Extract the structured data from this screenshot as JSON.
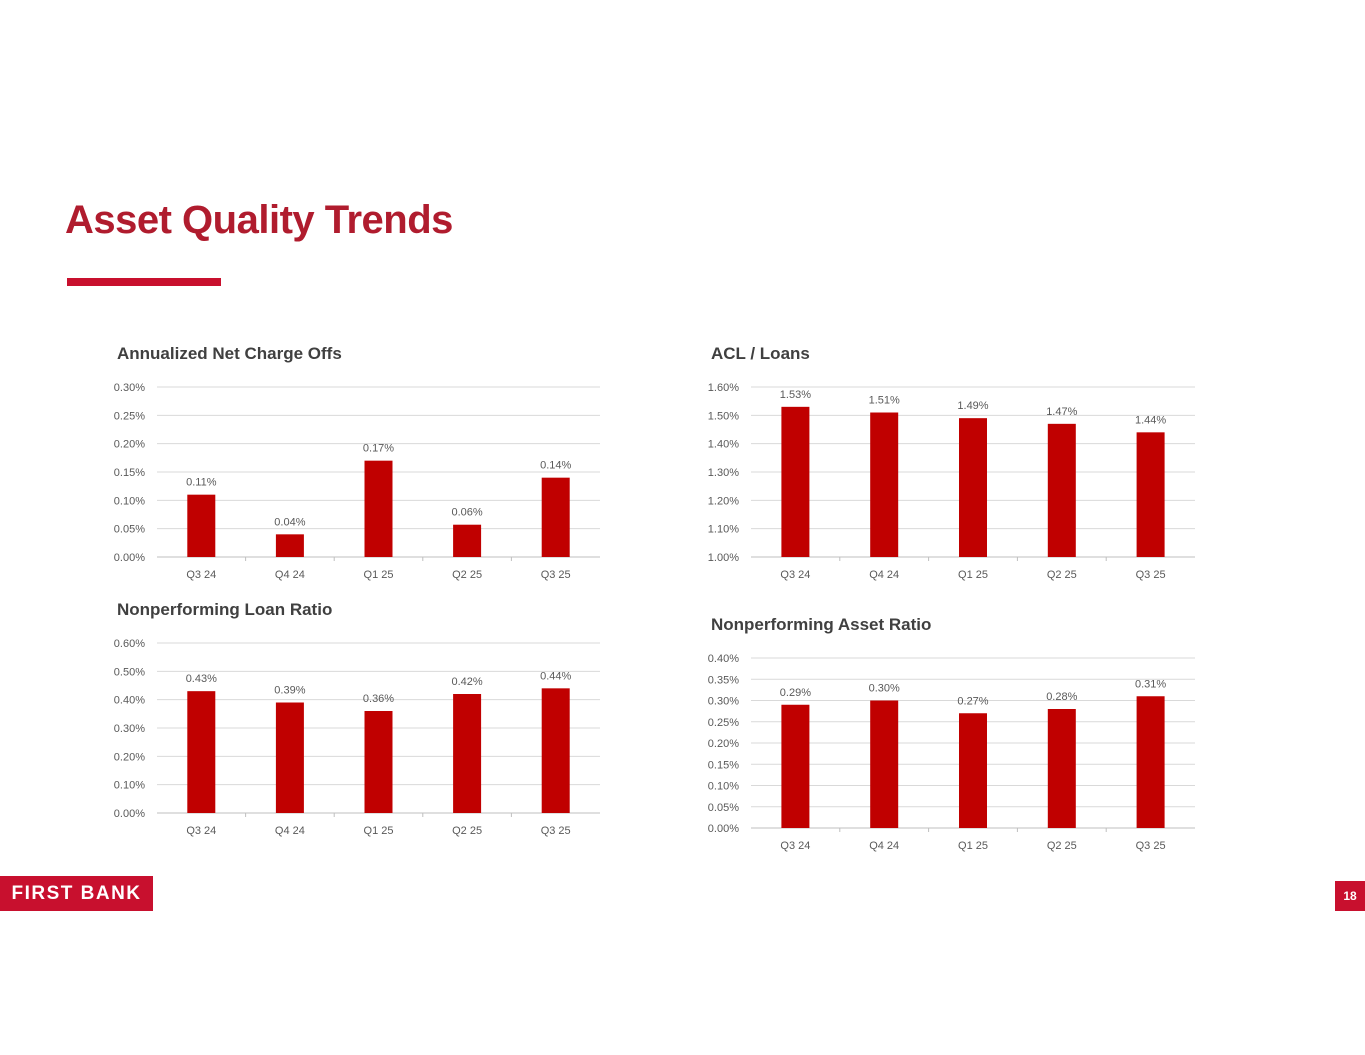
{
  "page": {
    "title": "Asset Quality Trends",
    "logo_text": "FIRST BANK",
    "page_number": "18"
  },
  "colors": {
    "bar": "#c00000",
    "title": "#b01c2e",
    "accent": "#c8102e",
    "grid": "#d9d9d9",
    "text": "#595959"
  },
  "chart_data": [
    {
      "type": "bar",
      "title": "Annualized Net Charge Offs",
      "categories": [
        "Q3 24",
        "Q4 24",
        "Q1 25",
        "Q2 25",
        "Q3 25"
      ],
      "values": [
        0.11,
        0.04,
        0.17,
        0.057,
        0.14
      ],
      "data_labels": [
        "0.11%",
        "0.04%",
        "0.17%",
        "0.06%",
        "0.14%"
      ],
      "ylim": [
        0,
        0.3
      ],
      "y_ticks": [
        "0.00%",
        "0.05%",
        "0.10%",
        "0.15%",
        "0.20%",
        "0.25%",
        "0.30%"
      ],
      "xlabel": "",
      "ylabel": "",
      "grid": true,
      "legend": false
    },
    {
      "type": "bar",
      "title": "ACL / Loans",
      "categories": [
        "Q3 24",
        "Q4 24",
        "Q1 25",
        "Q2 25",
        "Q3 25"
      ],
      "values": [
        1.53,
        1.51,
        1.49,
        1.47,
        1.44
      ],
      "data_labels": [
        "1.53%",
        "1.51%",
        "1.49%",
        "1.47%",
        "1.44%"
      ],
      "ylim": [
        1.0,
        1.6
      ],
      "y_ticks": [
        "1.00%",
        "1.10%",
        "1.20%",
        "1.30%",
        "1.40%",
        "1.50%",
        "1.60%"
      ],
      "xlabel": "",
      "ylabel": "",
      "grid": true,
      "legend": false
    },
    {
      "type": "bar",
      "title": "Nonperforming Loan Ratio",
      "categories": [
        "Q3 24",
        "Q4 24",
        "Q1 25",
        "Q2 25",
        "Q3 25"
      ],
      "values": [
        0.43,
        0.39,
        0.36,
        0.42,
        0.44
      ],
      "data_labels": [
        "0.43%",
        "0.39%",
        "0.36%",
        "0.42%",
        "0.44%"
      ],
      "ylim": [
        0,
        0.6
      ],
      "y_ticks": [
        "0.00%",
        "0.10%",
        "0.20%",
        "0.30%",
        "0.40%",
        "0.50%",
        "0.60%"
      ],
      "xlabel": "",
      "ylabel": "",
      "grid": true,
      "legend": false
    },
    {
      "type": "bar",
      "title": "Nonperforming Asset Ratio",
      "categories": [
        "Q3 24",
        "Q4 24",
        "Q1 25",
        "Q2 25",
        "Q3 25"
      ],
      "values": [
        0.29,
        0.3,
        0.27,
        0.28,
        0.31
      ],
      "data_labels": [
        "0.29%",
        "0.30%",
        "0.27%",
        "0.28%",
        "0.31%"
      ],
      "ylim": [
        0,
        0.4
      ],
      "y_ticks": [
        "0.00%",
        "0.05%",
        "0.10%",
        "0.15%",
        "0.20%",
        "0.25%",
        "0.30%",
        "0.35%",
        "0.40%"
      ],
      "xlabel": "",
      "ylabel": "",
      "grid": true,
      "legend": false
    }
  ]
}
